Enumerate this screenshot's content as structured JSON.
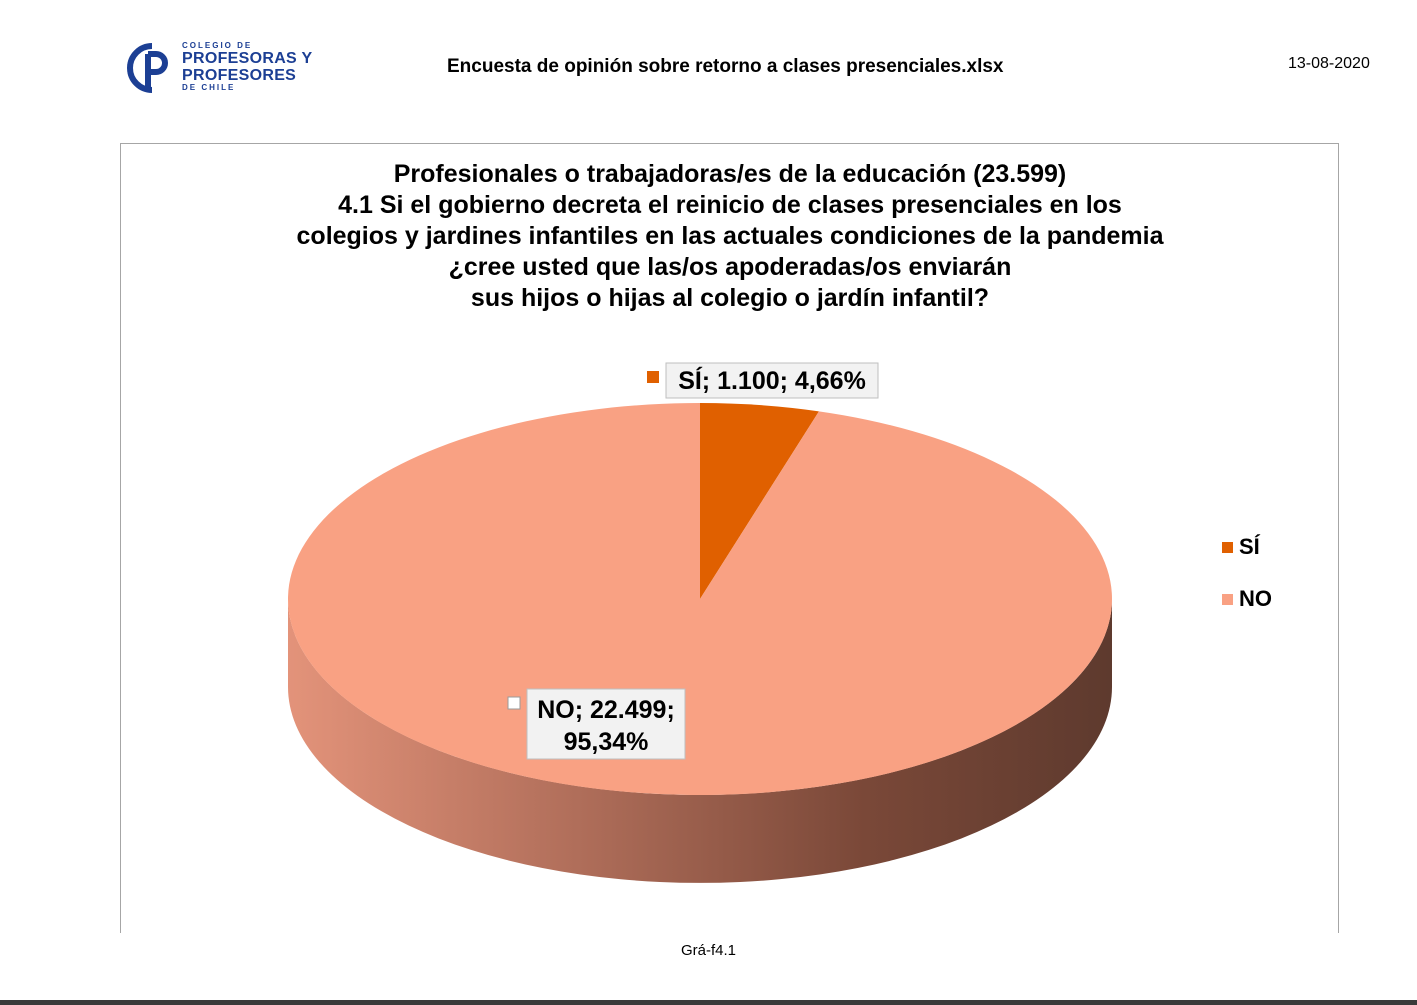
{
  "header": {
    "logo": {
      "icon": "cp-monogram-icon",
      "line1": "COLEGIO DE",
      "line2": "PROFESORAS Y",
      "line3": "PROFESORES",
      "line4": "DE CHILE",
      "color": "#1c3f94"
    },
    "document_title": "Encuesta de opinión sobre retorno a clases presenciales.xlsx",
    "date": "13-08-2020"
  },
  "chart_data": {
    "type": "pie",
    "title_lines": [
      "Profesionales o trabajadoras/es de la educación (23.599)",
      "4.1 Si el gobierno decreta el reinicio de clases presenciales en los",
      "colegios y jardines infantiles en las actuales condiciones de la pandemia",
      "¿cree usted que las/os apoderadas/os enviarán",
      "sus hijos o hijas al colegio o jardín infantil?"
    ],
    "slices": [
      {
        "name": "SÍ",
        "value": 1100,
        "percent": 4.66,
        "color": "#e06000",
        "label_lines": [
          "SÍ; 1.100; 4,66%"
        ]
      },
      {
        "name": "NO",
        "value": 22499,
        "percent": 95.34,
        "color": "#f9a183",
        "label_lines": [
          "NO; 22.499;",
          "95,34%"
        ]
      }
    ],
    "legend": {
      "placement": "right",
      "entries": [
        "SÍ",
        "NO"
      ]
    },
    "style": "3d-tilted"
  },
  "footer": {
    "sheet_label": "Grá-f4.1"
  }
}
